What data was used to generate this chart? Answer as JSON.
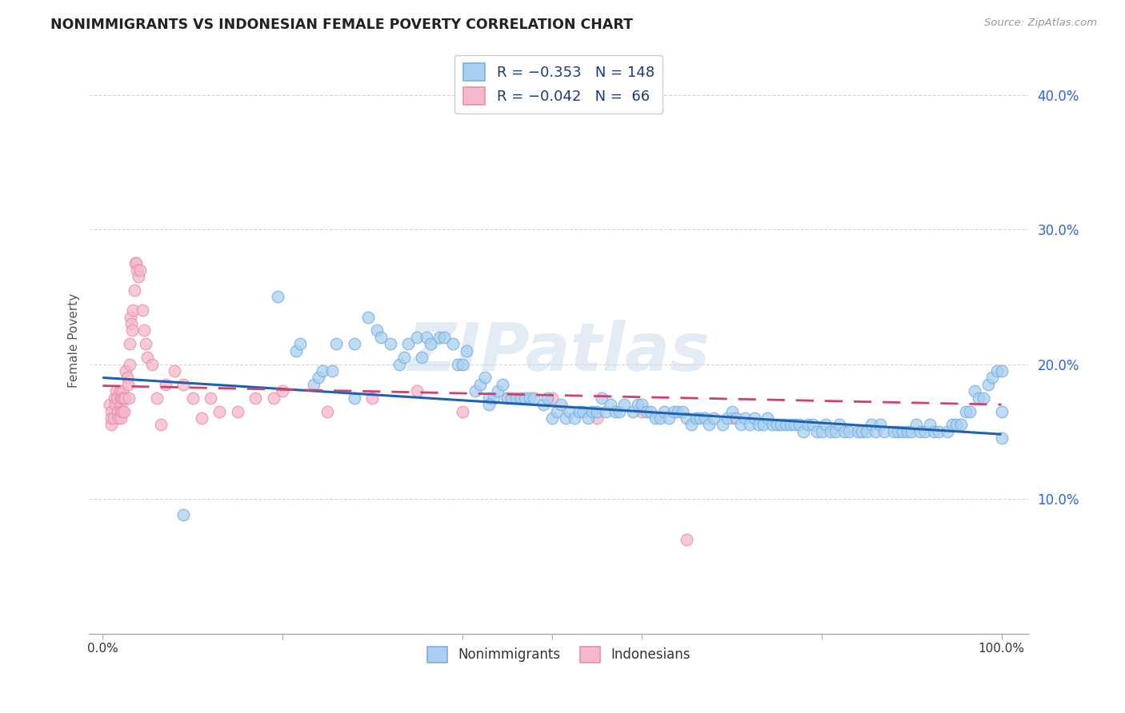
{
  "title": "NONIMMIGRANTS VS INDONESIAN FEMALE POVERTY CORRELATION CHART",
  "source": "Source: ZipAtlas.com",
  "ylabel": "Female Poverty",
  "ytick_vals": [
    0.1,
    0.2,
    0.3,
    0.4
  ],
  "legend_r_blue": "-0.353",
  "legend_n_blue": "148",
  "legend_r_pink": "-0.042",
  "legend_n_pink": "66",
  "blue_scatter_color": "#A8D0F0",
  "pink_scatter_color": "#F5B8CC",
  "blue_edge_color": "#7AAFE0",
  "pink_edge_color": "#E890AA",
  "blue_line_color": "#2060B0",
  "pink_line_color": "#D04070",
  "background_color": "#FFFFFF",
  "grid_color": "#C8C8D0",
  "watermark": "ZIPatlas",
  "blue_trend_x": [
    0.0,
    1.0
  ],
  "blue_trend_y": [
    0.19,
    0.148
  ],
  "pink_trend_x": [
    0.0,
    0.4
  ],
  "pink_trend_y": [
    0.184,
    0.174
  ],
  "xlim": [
    -0.015,
    1.03
  ],
  "ylim": [
    0.0,
    0.435
  ],
  "legend_label_blue": "R = −0.353   N = 148",
  "legend_label_pink": "R = −0.042   N =  66",
  "bottom_label_blue": "Nonimmigrants",
  "bottom_label_pink": "Indonesians",
  "pink_x": [
    0.008,
    0.01,
    0.01,
    0.01,
    0.012,
    0.013,
    0.014,
    0.015,
    0.016,
    0.017,
    0.018,
    0.019,
    0.02,
    0.02,
    0.02,
    0.02,
    0.021,
    0.022,
    0.022,
    0.023,
    0.024,
    0.025,
    0.026,
    0.027,
    0.028,
    0.029,
    0.03,
    0.03,
    0.031,
    0.032,
    0.033,
    0.034,
    0.035,
    0.036,
    0.037,
    0.038,
    0.04,
    0.042,
    0.044,
    0.046,
    0.048,
    0.05,
    0.055,
    0.06,
    0.065,
    0.07,
    0.08,
    0.09,
    0.1,
    0.11,
    0.12,
    0.13,
    0.15,
    0.17,
    0.19,
    0.2,
    0.25,
    0.3,
    0.35,
    0.4,
    0.45,
    0.5,
    0.55,
    0.6,
    0.65,
    0.7
  ],
  "pink_y": [
    0.17,
    0.155,
    0.165,
    0.16,
    0.16,
    0.175,
    0.17,
    0.18,
    0.175,
    0.165,
    0.16,
    0.18,
    0.175,
    0.17,
    0.165,
    0.16,
    0.175,
    0.165,
    0.18,
    0.175,
    0.165,
    0.175,
    0.195,
    0.19,
    0.185,
    0.175,
    0.215,
    0.2,
    0.235,
    0.23,
    0.225,
    0.24,
    0.255,
    0.275,
    0.275,
    0.27,
    0.265,
    0.27,
    0.24,
    0.225,
    0.215,
    0.205,
    0.2,
    0.175,
    0.155,
    0.185,
    0.195,
    0.185,
    0.175,
    0.16,
    0.175,
    0.165,
    0.165,
    0.175,
    0.175,
    0.18,
    0.165,
    0.175,
    0.18,
    0.165,
    0.175,
    0.175,
    0.16,
    0.165,
    0.07,
    0.16
  ],
  "blue_x": [
    0.195,
    0.215,
    0.22,
    0.235,
    0.24,
    0.245,
    0.255,
    0.26,
    0.28,
    0.295,
    0.305,
    0.31,
    0.32,
    0.33,
    0.335,
    0.34,
    0.35,
    0.355,
    0.36,
    0.365,
    0.375,
    0.38,
    0.39,
    0.395,
    0.4,
    0.405,
    0.415,
    0.42,
    0.425,
    0.43,
    0.435,
    0.44,
    0.445,
    0.45,
    0.455,
    0.46,
    0.465,
    0.47,
    0.475,
    0.48,
    0.49,
    0.495,
    0.5,
    0.505,
    0.51,
    0.515,
    0.52,
    0.525,
    0.53,
    0.535,
    0.54,
    0.545,
    0.55,
    0.555,
    0.56,
    0.565,
    0.57,
    0.575,
    0.58,
    0.59,
    0.595,
    0.6,
    0.605,
    0.61,
    0.615,
    0.62,
    0.625,
    0.63,
    0.635,
    0.64,
    0.645,
    0.65,
    0.655,
    0.66,
    0.665,
    0.67,
    0.675,
    0.68,
    0.69,
    0.695,
    0.7,
    0.705,
    0.71,
    0.715,
    0.72,
    0.725,
    0.73,
    0.735,
    0.74,
    0.745,
    0.75,
    0.755,
    0.76,
    0.765,
    0.77,
    0.775,
    0.78,
    0.785,
    0.79,
    0.795,
    0.8,
    0.805,
    0.81,
    0.815,
    0.82,
    0.825,
    0.83,
    0.84,
    0.845,
    0.85,
    0.855,
    0.86,
    0.865,
    0.87,
    0.88,
    0.885,
    0.89,
    0.895,
    0.9,
    0.905,
    0.91,
    0.915,
    0.92,
    0.925,
    0.93,
    0.94,
    0.945,
    0.95,
    0.955,
    0.96,
    0.965,
    0.97,
    0.975,
    0.98,
    0.985,
    0.99,
    0.995,
    1.0,
    1.0,
    1.0,
    0.43,
    0.09,
    0.28
  ],
  "blue_y": [
    0.25,
    0.21,
    0.215,
    0.185,
    0.19,
    0.195,
    0.195,
    0.215,
    0.215,
    0.235,
    0.225,
    0.22,
    0.215,
    0.2,
    0.205,
    0.215,
    0.22,
    0.205,
    0.22,
    0.215,
    0.22,
    0.22,
    0.215,
    0.2,
    0.2,
    0.21,
    0.18,
    0.185,
    0.19,
    0.175,
    0.175,
    0.18,
    0.185,
    0.175,
    0.175,
    0.175,
    0.175,
    0.175,
    0.175,
    0.175,
    0.17,
    0.175,
    0.16,
    0.165,
    0.17,
    0.16,
    0.165,
    0.16,
    0.165,
    0.165,
    0.16,
    0.165,
    0.165,
    0.175,
    0.165,
    0.17,
    0.165,
    0.165,
    0.17,
    0.165,
    0.17,
    0.17,
    0.165,
    0.165,
    0.16,
    0.16,
    0.165,
    0.16,
    0.165,
    0.165,
    0.165,
    0.16,
    0.155,
    0.16,
    0.16,
    0.16,
    0.155,
    0.16,
    0.155,
    0.16,
    0.165,
    0.16,
    0.155,
    0.16,
    0.155,
    0.16,
    0.155,
    0.155,
    0.16,
    0.155,
    0.155,
    0.155,
    0.155,
    0.155,
    0.155,
    0.155,
    0.15,
    0.155,
    0.155,
    0.15,
    0.15,
    0.155,
    0.15,
    0.15,
    0.155,
    0.15,
    0.15,
    0.15,
    0.15,
    0.15,
    0.155,
    0.15,
    0.155,
    0.15,
    0.15,
    0.15,
    0.15,
    0.15,
    0.15,
    0.155,
    0.15,
    0.15,
    0.155,
    0.15,
    0.15,
    0.15,
    0.155,
    0.155,
    0.155,
    0.165,
    0.165,
    0.18,
    0.175,
    0.175,
    0.185,
    0.19,
    0.195,
    0.195,
    0.165,
    0.145,
    0.17,
    0.088,
    0.175
  ]
}
